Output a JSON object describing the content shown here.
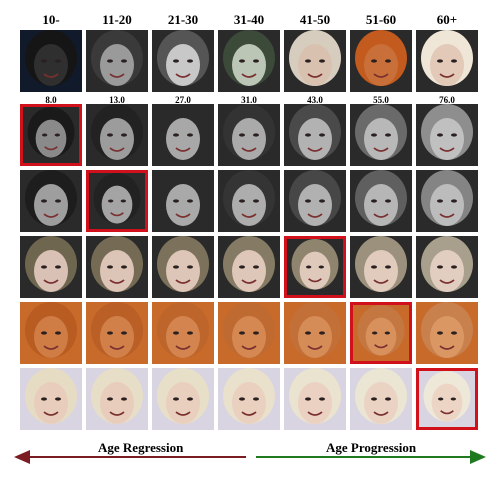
{
  "column_headers": [
    "10-",
    "11-20",
    "21-30",
    "31-40",
    "41-50",
    "51-60",
    "60+"
  ],
  "estimated_ages": [
    "8.0",
    "13.0",
    "27.0",
    "31.0",
    "43.0",
    "55.0",
    "76.0"
  ],
  "rows": [
    {
      "kind": "input",
      "tone": [
        "#2f2f2f",
        "#9a9a9a",
        "#c8c8c8",
        "#bcc6b6",
        "#d9c1b0",
        "#c9703a",
        "#e2c9b8"
      ],
      "hair": [
        "#151515",
        "#3a3a3a",
        "#555",
        "#3c4a3a",
        "#d7cdbf",
        "#c35a1e",
        "#efe6d8"
      ]
    },
    {
      "kind": "synth",
      "selected": 0,
      "tone": [
        "#8a8a8a",
        "#9c9c9c",
        "#a8a8a8",
        "#aaaaaa",
        "#b2b2b2",
        "#b8b8b8",
        "#c0c0c0"
      ],
      "hair": [
        "#1a1a1a",
        "#222",
        "#2a2a2a",
        "#333",
        "#4a4a4a",
        "#6a6a6a",
        "#8e8e8e"
      ]
    },
    {
      "kind": "synth",
      "selected": 1,
      "tone": [
        "#9e9e9e",
        "#a4a4a4",
        "#a9a9a9",
        "#adadad",
        "#b1b1b1",
        "#b6b6b6",
        "#bcbcbc"
      ],
      "hair": [
        "#1d1d1d",
        "#222",
        "#2a2a2a",
        "#343434",
        "#474747",
        "#5f5f5f",
        "#848484"
      ]
    },
    {
      "kind": "synth",
      "selected": 4,
      "tone": [
        "#d9c2b5",
        "#dcc4b6",
        "#ddc6b7",
        "#dec7b9",
        "#dfc9bb",
        "#e0cbbd",
        "#e2cec0"
      ],
      "hair": [
        "#6f6650",
        "#756b55",
        "#7c715b",
        "#857a64",
        "#8f856f",
        "#9b917d",
        "#a89f8d"
      ]
    },
    {
      "kind": "synth",
      "selected": 5,
      "tone": [
        "#d07c45",
        "#d2804a",
        "#d4844e",
        "#d58852",
        "#d68c57",
        "#d8915d",
        "#da9764"
      ],
      "hair": [
        "#b85c22",
        "#ba6026",
        "#bd652b",
        "#bf6a31",
        "#c27038",
        "#c57741",
        "#c8804c"
      ]
    },
    {
      "kind": "synth",
      "selected": 6,
      "tone": [
        "#e8cdbc",
        "#e8cdbc",
        "#e9cfbe",
        "#e9d0bf",
        "#ead1c1",
        "#ebd3c3",
        "#ecd5c5"
      ],
      "hair": [
        "#e6dcc4",
        "#e7dec7",
        "#e8dfc9",
        "#e9e1cc",
        "#eae3cf",
        "#ebe5d3",
        "#ede8d8"
      ]
    }
  ],
  "arrows": {
    "left_label": "Age Regression",
    "right_label": "Age Progression",
    "left_color": "#7a1c22",
    "right_color": "#1f7a1f"
  }
}
